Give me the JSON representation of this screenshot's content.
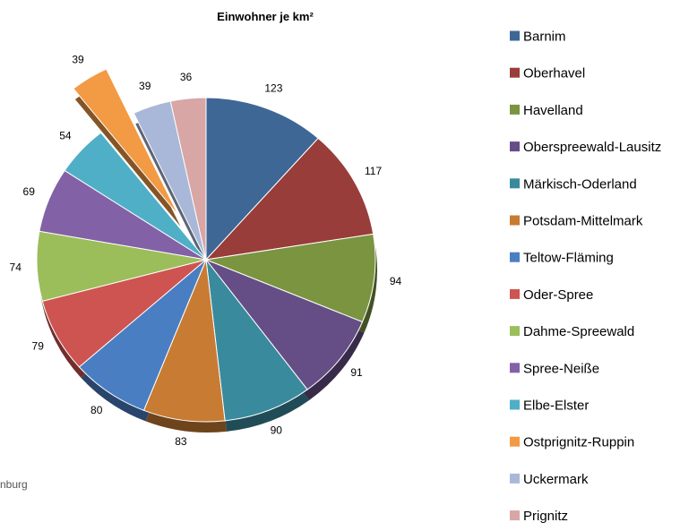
{
  "chart_data": {
    "type": "pie",
    "title": "Einwohner je km²",
    "categories": [
      "Barnim",
      "Oberhavel",
      "Havelland",
      "Oberspreewald-Lausitz",
      "Märkisch-Oderland",
      "Potsdam-Mittelmark",
      "Teltow-Fläming",
      "Oder-Spree",
      "Dahme-Spreewald",
      "Spree-Neiße",
      "Elbe-Elster",
      "Ostprignitz-Ruppin",
      "Uckermark",
      "Prignitz"
    ],
    "slices": [
      {
        "label": "123",
        "value": 123,
        "color": "#3E6796"
      },
      {
        "label": "117",
        "value": 117,
        "color": "#983D3A"
      },
      {
        "label": "94",
        "value": 94,
        "color": "#7A9440"
      },
      {
        "label": "91",
        "value": 91,
        "color": "#654E85"
      },
      {
        "label": "90",
        "value": 90,
        "color": "#3A8A9E"
      },
      {
        "label": "83",
        "value": 83,
        "color": "#C87B33"
      },
      {
        "label": "80",
        "value": 80,
        "color": "#4A7EC2"
      },
      {
        "label": "79",
        "value": 79,
        "color": "#CE5452"
      },
      {
        "label": "74",
        "value": 74,
        "color": "#9BBE5A"
      },
      {
        "label": "69",
        "value": 69,
        "color": "#8361A6"
      },
      {
        "label": "54",
        "value": 54,
        "color": "#4FAFC6"
      },
      {
        "label": "39",
        "value": 39,
        "color": "#F39A45",
        "exploded": true
      },
      {
        "label": "39",
        "value": 39,
        "color": "#A9B8D8"
      },
      {
        "label": "36",
        "value": 36,
        "color": "#D8A6A5"
      }
    ],
    "legend": {
      "position": "right"
    },
    "footer_text": "nburg"
  }
}
